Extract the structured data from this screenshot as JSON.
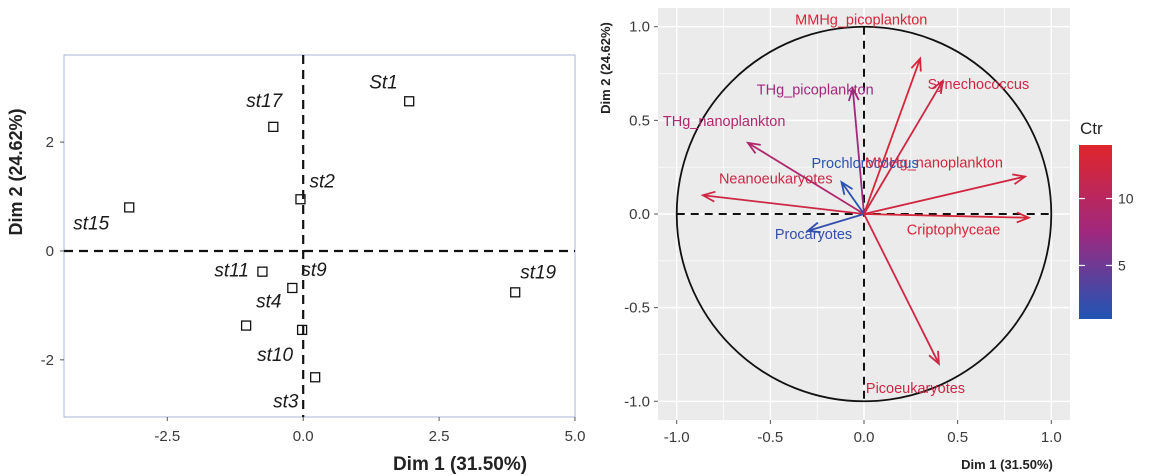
{
  "chart_data": [
    {
      "type": "scatter",
      "title": "",
      "xlabel": "Dim 1 (31.50%)",
      "ylabel": "Dim 2 (24.62%)",
      "xlim": [
        -4.4,
        5.0
      ],
      "ylim": [
        -3.05,
        3.6
      ],
      "x_ticks": [
        -2.5,
        0.0,
        2.5,
        5.0
      ],
      "x_tick_labels": [
        "-2.5",
        "0.0",
        "2.5",
        "5.0"
      ],
      "y_ticks": [
        -2,
        0,
        2
      ],
      "y_tick_labels": [
        "-2",
        "0",
        "2"
      ],
      "grid": false,
      "reference_lines": {
        "x": 0,
        "y": 0,
        "style": "dashed"
      },
      "points": [
        {
          "label": "st17",
          "x": -0.55,
          "y": 2.28
        },
        {
          "label": "St1",
          "x": 1.95,
          "y": 2.75
        },
        {
          "label": "st2",
          "x": -0.05,
          "y": 0.95
        },
        {
          "label": "st15",
          "x": -3.2,
          "y": 0.8
        },
        {
          "label": "st11",
          "x": -0.75,
          "y": -0.38
        },
        {
          "label": "st9",
          "x": -0.2,
          "y": -0.68
        },
        {
          "label": "st19",
          "x": 3.9,
          "y": -0.76
        },
        {
          "label": "st4",
          "x": -1.05,
          "y": -1.37
        },
        {
          "label": "st10",
          "x": -0.02,
          "y": -1.45
        },
        {
          "label": "st3",
          "x": 0.22,
          "y": -2.32
        }
      ]
    },
    {
      "type": "scatter",
      "subtype": "pca-correlation-circle",
      "title": "",
      "xlabel": "Dim 1 (31.50%)",
      "ylabel": "Dim 2 (24.62%)",
      "xlim": [
        -1.1,
        1.1
      ],
      "ylim": [
        -1.1,
        1.1
      ],
      "x_ticks": [
        -1.0,
        -0.5,
        0.0,
        0.5,
        1.0
      ],
      "x_tick_labels": [
        "-1.0",
        "-0.5",
        "0.0",
        "0.5",
        "1.0"
      ],
      "y_ticks": [
        -1.0,
        -0.5,
        0.0,
        0.5,
        1.0
      ],
      "y_tick_labels": [
        "-1.0",
        "-0.5",
        "0.0",
        "0.5",
        "1.0"
      ],
      "grid": true,
      "reference_lines": {
        "x": 0,
        "y": 0,
        "style": "dashed"
      },
      "circle_radius": 1.0,
      "color_scale": {
        "title": "Ctr",
        "low_color": "#1f55b4",
        "high_color": "#e0262c",
        "range": [
          1,
          14
        ],
        "ticks": [
          5,
          10
        ],
        "tick_labels": [
          "5",
          "10"
        ],
        "legend_position": "right"
      },
      "vectors": [
        {
          "label": "MMHg_picoplankton",
          "x": 0.3,
          "y": 0.83,
          "ctr": 13
        },
        {
          "label": "Synechococcus",
          "x": 0.42,
          "y": 0.71,
          "ctr": 12
        },
        {
          "label": "THg_picoplankton",
          "x": -0.06,
          "y": 0.67,
          "ctr": 7.5
        },
        {
          "label": "THg_nanoplankton",
          "x": -0.62,
          "y": 0.38,
          "ctr": 9
        },
        {
          "label": "Prochlorococcus",
          "x": -0.12,
          "y": 0.17,
          "ctr": 1.5
        },
        {
          "label": "MMHg_nanoplankton",
          "x": 0.86,
          "y": 0.2,
          "ctr": 12.5
        },
        {
          "label": "Neanoeukaryotes",
          "x": -0.86,
          "y": 0.1,
          "ctr": 12
        },
        {
          "label": "Procaryotes",
          "x": -0.3,
          "y": -0.09,
          "ctr": 2
        },
        {
          "label": "Criptophyceae",
          "x": 0.88,
          "y": -0.02,
          "ctr": 13
        },
        {
          "label": "Picoeukaryotes",
          "x": 0.4,
          "y": -0.8,
          "ctr": 12
        }
      ]
    }
  ]
}
